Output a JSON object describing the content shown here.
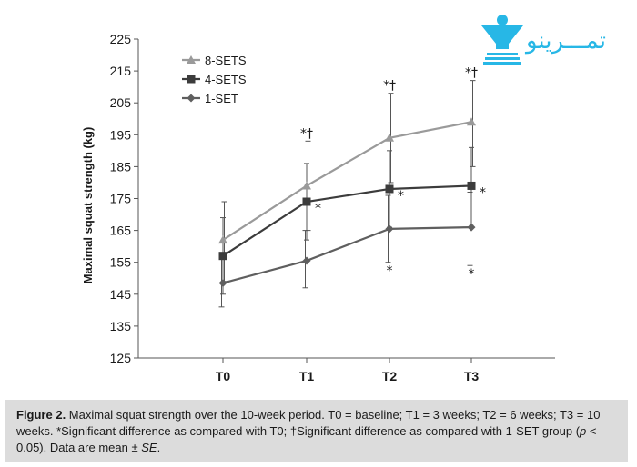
{
  "chart_data": {
    "type": "line",
    "title": "",
    "xlabel": "",
    "ylabel": "Maximal squat strength (kg)",
    "ylim": [
      125,
      225
    ],
    "yticks": [
      125,
      135,
      145,
      155,
      165,
      175,
      185,
      195,
      205,
      215,
      225
    ],
    "categories": [
      "T0",
      "T1",
      "T2",
      "T3"
    ],
    "grid": false,
    "legend_position": "top-left",
    "series": [
      {
        "name": "8-SETS",
        "marker": "triangle",
        "color": "#9a9a9a",
        "values": [
          162,
          179,
          194,
          199
        ],
        "error_high": [
          174,
          193,
          208,
          212
        ],
        "error_low": [
          149,
          165,
          180,
          185
        ]
      },
      {
        "name": "4-SETS",
        "marker": "square",
        "color": "#3c3c3c",
        "values": [
          157,
          174,
          178,
          179
        ],
        "error_high": [
          169,
          186,
          190,
          191
        ],
        "error_low": [
          145,
          162,
          166,
          167
        ]
      },
      {
        "name": "1-SET",
        "marker": "diamond",
        "color": "#5f5f5f",
        "values": [
          148.5,
          155.5,
          165.5,
          166
        ],
        "error_high": [
          158,
          165,
          176,
          177
        ],
        "error_low": [
          141,
          147,
          155,
          154
        ]
      }
    ],
    "annotations": [
      {
        "text": "*†",
        "series": "8-SETS",
        "category": "T1",
        "place": "above"
      },
      {
        "text": "*†",
        "series": "8-SETS",
        "category": "T2",
        "place": "above"
      },
      {
        "text": "*†",
        "series": "8-SETS",
        "category": "T3",
        "place": "above"
      },
      {
        "text": "*",
        "series": "4-SETS",
        "category": "T1",
        "place": "right"
      },
      {
        "text": "*",
        "series": "4-SETS",
        "category": "T2",
        "place": "right"
      },
      {
        "text": "*",
        "series": "4-SETS",
        "category": "T3",
        "place": "right"
      },
      {
        "text": "*",
        "series": "1-SET",
        "category": "T2",
        "place": "below"
      },
      {
        "text": "*",
        "series": "1-SET",
        "category": "T3",
        "place": "below"
      }
    ]
  },
  "caption": {
    "label": "Figure 2.",
    "text_1": " Maximal squat strength over the 10-week period. T0 = baseline; T1 = 3 weeks; T2 = 6 weeks; T3 = 10 weeks. *Significant difference as compared with T0; †Significant difference as compared with 1-SET group (",
    "p_symbol": "p",
    "text_2": " < 0.05). Data are mean ± ",
    "se_symbol": "SE",
    "text_3": "."
  },
  "logo": {
    "text": "تمـــرینو",
    "color": "#27b7e6"
  }
}
